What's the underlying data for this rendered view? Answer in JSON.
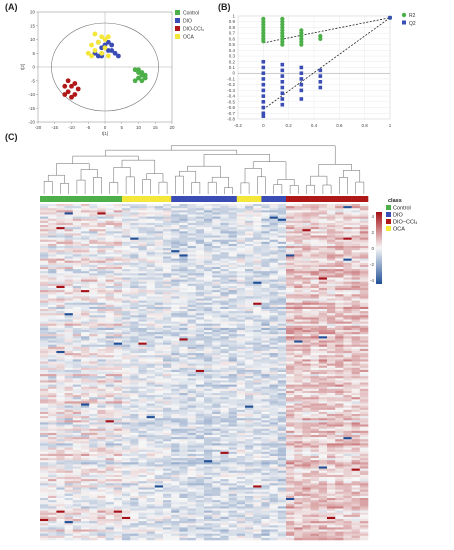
{
  "panels": {
    "a": "(A)",
    "b": "(B)",
    "c": "(C)"
  },
  "colors": {
    "Control": "#4daf4a",
    "DIO": "#3a4db5",
    "DIO-CCl4": "#b01818",
    "OCA": "#f5e63a",
    "R2": "#4daf4a",
    "Q2": "#3a4db5"
  },
  "chart_data": [
    {
      "type": "scatter",
      "panel": "(A)",
      "xlabel": "t[1]",
      "ylabel": "t[2]",
      "xlim": [
        -20,
        20
      ],
      "ylim": [
        -20,
        20
      ],
      "xticks": [
        "-20",
        "-15",
        "-10",
        "-5",
        "0",
        "5",
        "10",
        "15",
        "20"
      ],
      "yticks": [
        "20",
        "15",
        "10",
        "5",
        "0",
        "-5",
        "-10",
        "-15",
        "-20"
      ],
      "legend": [
        "Control",
        "DIO",
        "DIO-CCl₄",
        "OCA"
      ],
      "groups": [
        {
          "name": "Control",
          "color_key": "Control",
          "points": [
            [
              9,
              -1
            ],
            [
              10,
              -2
            ],
            [
              11,
              -3
            ],
            [
              12,
              -4
            ],
            [
              10,
              -4
            ],
            [
              11,
              -5
            ],
            [
              9,
              -5
            ],
            [
              12,
              -3
            ],
            [
              10,
              -1
            ],
            [
              11,
              -2
            ]
          ]
        },
        {
          "name": "DIO",
          "color_key": "DIO",
          "points": [
            [
              -2,
              9
            ],
            [
              -1,
              7
            ],
            [
              0,
              8
            ],
            [
              1,
              6
            ],
            [
              2,
              6
            ],
            [
              -3,
              5
            ],
            [
              3,
              5
            ],
            [
              -1,
              4
            ],
            [
              4,
              4
            ],
            [
              1,
              9
            ],
            [
              -2,
              4
            ],
            [
              2,
              8
            ]
          ]
        },
        {
          "name": "DIO-CCl4",
          "color_key": "DIO-CCl4",
          "points": [
            [
              -11,
              -5
            ],
            [
              -9,
              -6
            ],
            [
              -12,
              -7
            ],
            [
              -10,
              -7
            ],
            [
              -8,
              -8
            ],
            [
              -11,
              -9
            ],
            [
              -9,
              -10
            ],
            [
              -12,
              -10
            ],
            [
              -10,
              -11
            ]
          ]
        },
        {
          "name": "OCA",
          "color_key": "OCA",
          "points": [
            [
              -3,
              12
            ],
            [
              -1,
              11
            ],
            [
              0,
              10
            ],
            [
              -2,
              9
            ],
            [
              -4,
              8
            ],
            [
              0,
              7
            ],
            [
              -3,
              6
            ],
            [
              -5,
              5
            ],
            [
              -1,
              5
            ],
            [
              1,
              4
            ],
            [
              -4,
              4
            ],
            [
              1,
              11
            ]
          ]
        }
      ]
    },
    {
      "type": "scatter",
      "panel": "(B)",
      "xlim": [
        -0.2,
        1.0
      ],
      "ylim": [
        -0.8,
        1.0
      ],
      "xticks": [
        "-0.2",
        "0",
        "0.2",
        "0.4",
        "0.6",
        "0.8",
        "1"
      ],
      "yticks": [
        "1",
        "0.9",
        "0.8",
        "0.7",
        "0.6",
        "0.5",
        "0.4",
        "0.3",
        "0.2",
        "0.1",
        "0",
        "-0.1",
        "-0.2",
        "-0.3",
        "-0.4",
        "-0.5",
        "-0.6",
        "-0.7",
        "-0.8"
      ],
      "legend": [
        "R2",
        "Q2"
      ],
      "series": [
        {
          "name": "R2",
          "color_key": "R2",
          "points": [
            [
              0,
              0.95
            ],
            [
              0,
              0.9
            ],
            [
              0,
              0.85
            ],
            [
              0,
              0.8
            ],
            [
              0,
              0.75
            ],
            [
              0,
              0.7
            ],
            [
              0,
              0.65
            ],
            [
              0,
              0.6
            ],
            [
              0,
              0.56
            ],
            [
              0.15,
              0.95
            ],
            [
              0.15,
              0.9
            ],
            [
              0.15,
              0.85
            ],
            [
              0.15,
              0.8
            ],
            [
              0.15,
              0.75
            ],
            [
              0.15,
              0.7
            ],
            [
              0.15,
              0.65
            ],
            [
              0.15,
              0.6
            ],
            [
              0.15,
              0.55
            ],
            [
              0.15,
              0.5
            ],
            [
              0.3,
              0.75
            ],
            [
              0.3,
              0.7
            ],
            [
              0.3,
              0.65
            ],
            [
              0.3,
              0.6
            ],
            [
              0.3,
              0.55
            ],
            [
              0.3,
              0.5
            ],
            [
              0.45,
              0.65
            ],
            [
              0.45,
              0.6
            ],
            [
              1,
              0.97
            ]
          ]
        },
        {
          "name": "Q2",
          "color_key": "Q2",
          "points": [
            [
              0,
              0.2
            ],
            [
              0,
              0.1
            ],
            [
              0,
              0.0
            ],
            [
              0,
              -0.1
            ],
            [
              0,
              -0.2
            ],
            [
              0,
              -0.3
            ],
            [
              0,
              -0.4
            ],
            [
              0,
              -0.5
            ],
            [
              0,
              -0.6
            ],
            [
              0,
              -0.7
            ],
            [
              0,
              -0.75
            ],
            [
              0.15,
              0.15
            ],
            [
              0.15,
              0.05
            ],
            [
              0.15,
              -0.05
            ],
            [
              0.15,
              -0.15
            ],
            [
              0.15,
              -0.25
            ],
            [
              0.15,
              -0.35
            ],
            [
              0.15,
              -0.45
            ],
            [
              0.15,
              -0.55
            ],
            [
              0.3,
              0.1
            ],
            [
              0.3,
              0.0
            ],
            [
              0.3,
              -0.1
            ],
            [
              0.3,
              -0.2
            ],
            [
              0.3,
              -0.3
            ],
            [
              0.3,
              -0.45
            ],
            [
              0.45,
              0.05
            ],
            [
              0.45,
              -0.05
            ],
            [
              0.45,
              -0.15
            ],
            [
              0.45,
              -0.25
            ],
            [
              1,
              0.97
            ]
          ]
        }
      ],
      "regression_lines": [
        {
          "series": "R2",
          "from": [
            0,
            0.53
          ],
          "to": [
            1,
            0.97
          ]
        },
        {
          "series": "Q2",
          "from": [
            0,
            -0.63
          ],
          "to": [
            1,
            0.97
          ]
        }
      ]
    },
    {
      "type": "heatmap",
      "panel": "(C)",
      "legend_title": "class",
      "legend": [
        "Control",
        "DIO",
        "DIO−CCl₄",
        "OCA"
      ],
      "color_scale": {
        "min": -4,
        "max": 4,
        "low": "#1f4f96",
        "mid": "#f7f7f7",
        "high": "#a50f15"
      },
      "scale_ticks": [
        "4",
        "2",
        "0",
        "-2",
        "-4"
      ],
      "column_classes": [
        "Control",
        "Control",
        "Control",
        "Control",
        "Control",
        "Control",
        "Control",
        "Control",
        "Control",
        "Control",
        "OCA",
        "OCA",
        "OCA",
        "OCA",
        "OCA",
        "OCA",
        "DIO",
        "DIO",
        "DIO",
        "DIO",
        "DIO",
        "DIO",
        "DIO",
        "DIO",
        "OCA",
        "OCA",
        "OCA",
        "DIO",
        "DIO",
        "DIO",
        "DIO-CCl4",
        "DIO-CCl4",
        "DIO-CCl4",
        "DIO-CCl4",
        "DIO-CCl4",
        "DIO-CCl4",
        "DIO-CCl4",
        "DIO-CCl4",
        "DIO-CCl4",
        "DIO-CCl4"
      ],
      "n_rows": 160
    }
  ]
}
